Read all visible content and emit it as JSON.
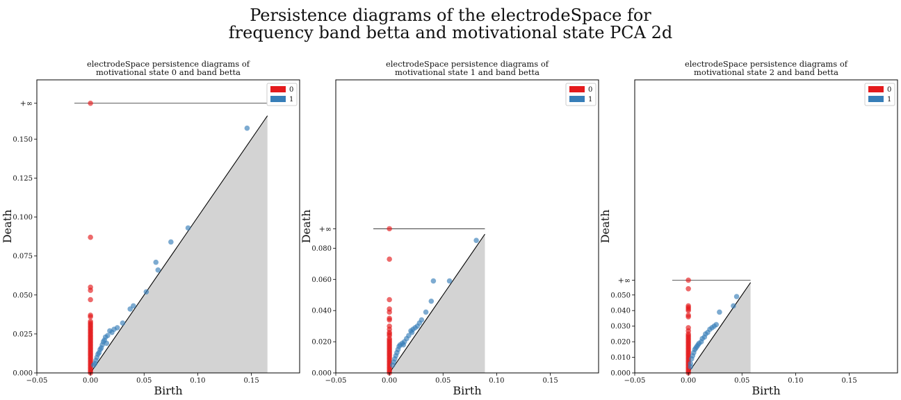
{
  "figure": {
    "title_line1": "Persistence diagrams of the electrodeSpace for",
    "title_line2": "frequency band betta and motivational state PCA 2d"
  },
  "colors": {
    "h0": "#e41a1c",
    "h1": "#377eb8",
    "diagonal_fill": "#d3d3d3"
  },
  "chart_data": [
    {
      "type": "scatter",
      "title_line1": "electrodeSpace persistence diagrams of",
      "title_line2": "motivational state 0 and band betta",
      "xlabel": "Birth",
      "ylabel": "Death",
      "xlim": [
        -0.05,
        0.195
      ],
      "ylim": [
        0,
        0.188
      ],
      "inf_value": 0.173,
      "diag_max": 0.165,
      "xticks": [
        "−0.05",
        "0.00",
        "0.05",
        "0.10",
        "0.15"
      ],
      "xtick_values": [
        -0.05,
        0,
        0.05,
        0.1,
        0.15
      ],
      "yticks": [
        "0.000",
        "0.025",
        "0.050",
        "0.075",
        "0.100",
        "0.125",
        "0.150"
      ],
      "ytick_values": [
        0,
        0.025,
        0.05,
        0.075,
        0.1,
        0.125,
        0.15
      ],
      "inf_label": "+∞",
      "legend": [
        "0",
        "1"
      ],
      "series": [
        {
          "name": "0",
          "points": [
            [
              0,
              0.173
            ],
            [
              0,
              0.087
            ],
            [
              0,
              0.055
            ],
            [
              0,
              0.053
            ],
            [
              0,
              0.047
            ],
            [
              0,
              0.037
            ],
            [
              0,
              0.036
            ],
            [
              0,
              0.033
            ],
            [
              0,
              0.032
            ],
            [
              0,
              0.031
            ],
            [
              0,
              0.03
            ],
            [
              0,
              0.029
            ],
            [
              0,
              0.028
            ],
            [
              0,
              0.027
            ],
            [
              0,
              0.026
            ],
            [
              0,
              0.025
            ],
            [
              0,
              0.024
            ],
            [
              0,
              0.023
            ],
            [
              0,
              0.022
            ],
            [
              0,
              0.021
            ],
            [
              0,
              0.02
            ],
            [
              0,
              0.019
            ],
            [
              0,
              0.018
            ],
            [
              0,
              0.017
            ],
            [
              0,
              0.016
            ],
            [
              0,
              0.015
            ],
            [
              0,
              0.014
            ],
            [
              0,
              0.013
            ],
            [
              0,
              0.012
            ],
            [
              0,
              0.011
            ],
            [
              0,
              0.01
            ],
            [
              0,
              0.009
            ],
            [
              0,
              0.008
            ],
            [
              0,
              0.007
            ],
            [
              0,
              0.006
            ],
            [
              0,
              0.005
            ],
            [
              0,
              0.004
            ],
            [
              0,
              0.003
            ],
            [
              0,
              0.002
            ],
            [
              0,
              0.001
            ],
            [
              0,
              0.0
            ]
          ]
        },
        {
          "name": "1",
          "points": [
            [
              0.146,
              0.157
            ],
            [
              0.091,
              0.093
            ],
            [
              0.075,
              0.084
            ],
            [
              0.061,
              0.071
            ],
            [
              0.063,
              0.066
            ],
            [
              0.052,
              0.052
            ],
            [
              0.04,
              0.043
            ],
            [
              0.037,
              0.041
            ],
            [
              0.03,
              0.032
            ],
            [
              0.025,
              0.029
            ],
            [
              0.022,
              0.028
            ],
            [
              0.018,
              0.027
            ],
            [
              0.02,
              0.026
            ],
            [
              0.016,
              0.024
            ],
            [
              0.014,
              0.023
            ],
            [
              0.013,
              0.021
            ],
            [
              0.012,
              0.02
            ],
            [
              0.015,
              0.019
            ],
            [
              0.011,
              0.018
            ],
            [
              0.01,
              0.016
            ],
            [
              0.009,
              0.015
            ],
            [
              0.008,
              0.013
            ],
            [
              0.007,
              0.012
            ],
            [
              0.006,
              0.01
            ],
            [
              0.005,
              0.008
            ],
            [
              0.004,
              0.006
            ],
            [
              0.003,
              0.005
            ]
          ]
        }
      ]
    },
    {
      "type": "scatter",
      "title_line1": "electrodeSpace persistence diagrams of",
      "title_line2": "motivational state 1 and band betta",
      "xlabel": "Birth",
      "ylabel": "Death",
      "xlim": [
        -0.05,
        0.195
      ],
      "ylim": [
        0,
        0.188
      ],
      "inf_value": 0.0925,
      "diag_max": 0.089,
      "xticks": [
        "−0.05",
        "0.00",
        "0.05",
        "0.10",
        "0.15"
      ],
      "xtick_values": [
        -0.05,
        0,
        0.05,
        0.1,
        0.15
      ],
      "yticks": [
        "0.000",
        "0.020",
        "0.040",
        "0.060",
        "0.080"
      ],
      "ytick_values": [
        0,
        0.02,
        0.04,
        0.06,
        0.08
      ],
      "inf_label": "+∞",
      "legend": [
        "0",
        "1"
      ],
      "series": [
        {
          "name": "0",
          "points": [
            [
              0,
              0.0925
            ],
            [
              0,
              0.073
            ],
            [
              0,
              0.047
            ],
            [
              0,
              0.041
            ],
            [
              0,
              0.039
            ],
            [
              0,
              0.035
            ],
            [
              0,
              0.034
            ],
            [
              0,
              0.03
            ],
            [
              0,
              0.028
            ],
            [
              0,
              0.026
            ],
            [
              0,
              0.025
            ],
            [
              0,
              0.024
            ],
            [
              0,
              0.022
            ],
            [
              0,
              0.021
            ],
            [
              0,
              0.02
            ],
            [
              0,
              0.019
            ],
            [
              0,
              0.018
            ],
            [
              0,
              0.017
            ],
            [
              0,
              0.016
            ],
            [
              0,
              0.015
            ],
            [
              0,
              0.014
            ],
            [
              0,
              0.013
            ],
            [
              0,
              0.012
            ],
            [
              0,
              0.011
            ],
            [
              0,
              0.01
            ],
            [
              0,
              0.009
            ],
            [
              0,
              0.008
            ],
            [
              0,
              0.007
            ],
            [
              0,
              0.006
            ],
            [
              0,
              0.005
            ],
            [
              0,
              0.004
            ],
            [
              0,
              0.003
            ],
            [
              0,
              0.002
            ],
            [
              0,
              0.001
            ],
            [
              0,
              0.0
            ]
          ]
        },
        {
          "name": "1",
          "points": [
            [
              0.081,
              0.085
            ],
            [
              0.056,
              0.059
            ],
            [
              0.041,
              0.059
            ],
            [
              0.039,
              0.046
            ],
            [
              0.034,
              0.039
            ],
            [
              0.03,
              0.034
            ],
            [
              0.028,
              0.032
            ],
            [
              0.026,
              0.03
            ],
            [
              0.024,
              0.029
            ],
            [
              0.022,
              0.028
            ],
            [
              0.02,
              0.027
            ],
            [
              0.021,
              0.026
            ],
            [
              0.018,
              0.024
            ],
            [
              0.016,
              0.022
            ],
            [
              0.014,
              0.02
            ],
            [
              0.012,
              0.019
            ],
            [
              0.013,
              0.018
            ],
            [
              0.01,
              0.018
            ],
            [
              0.009,
              0.017
            ],
            [
              0.008,
              0.015
            ],
            [
              0.007,
              0.013
            ],
            [
              0.006,
              0.011
            ],
            [
              0.005,
              0.009
            ],
            [
              0.004,
              0.007
            ],
            [
              0.003,
              0.005
            ]
          ]
        }
      ]
    },
    {
      "type": "scatter",
      "title_line1": "electrodeSpace persistence diagrams of",
      "title_line2": "motivational state 2 and band betta",
      "xlabel": "Birth",
      "ylabel": "Death",
      "xlim": [
        -0.05,
        0.195
      ],
      "ylim": [
        0,
        0.188
      ],
      "inf_value": 0.0595,
      "diag_max": 0.058,
      "xticks": [
        "−0.05",
        "0.00",
        "0.05",
        "0.10",
        "0.15"
      ],
      "xtick_values": [
        -0.05,
        0,
        0.05,
        0.1,
        0.15
      ],
      "yticks": [
        "0.000",
        "0.010",
        "0.020",
        "0.030",
        "0.040",
        "0.050"
      ],
      "ytick_values": [
        0,
        0.01,
        0.02,
        0.03,
        0.04,
        0.05
      ],
      "inf_label": "+∞",
      "legend": [
        "0",
        "1"
      ],
      "series": [
        {
          "name": "0",
          "points": [
            [
              0,
              0.0595
            ],
            [
              0,
              0.054
            ],
            [
              0,
              0.043
            ],
            [
              0,
              0.042
            ],
            [
              0,
              0.041
            ],
            [
              0,
              0.04
            ],
            [
              0,
              0.037
            ],
            [
              0,
              0.036
            ],
            [
              0,
              0.029
            ],
            [
              0,
              0.027
            ],
            [
              0,
              0.025
            ],
            [
              0,
              0.024
            ],
            [
              0,
              0.023
            ],
            [
              0,
              0.022
            ],
            [
              0,
              0.021
            ],
            [
              0,
              0.02
            ],
            [
              0,
              0.019
            ],
            [
              0,
              0.018
            ],
            [
              0,
              0.017
            ],
            [
              0,
              0.016
            ],
            [
              0,
              0.015
            ],
            [
              0,
              0.014
            ],
            [
              0,
              0.013
            ],
            [
              0,
              0.012
            ],
            [
              0,
              0.011
            ],
            [
              0,
              0.01
            ],
            [
              0,
              0.009
            ],
            [
              0,
              0.008
            ],
            [
              0,
              0.007
            ],
            [
              0,
              0.006
            ],
            [
              0,
              0.005
            ],
            [
              0,
              0.004
            ],
            [
              0,
              0.003
            ],
            [
              0,
              0.002
            ],
            [
              0,
              0.001
            ],
            [
              0,
              0.0
            ]
          ]
        },
        {
          "name": "1",
          "points": [
            [
              0.045,
              0.049
            ],
            [
              0.042,
              0.043
            ],
            [
              0.029,
              0.039
            ],
            [
              0.026,
              0.031
            ],
            [
              0.024,
              0.03
            ],
            [
              0.022,
              0.029
            ],
            [
              0.02,
              0.028
            ],
            [
              0.018,
              0.026
            ],
            [
              0.016,
              0.025
            ],
            [
              0.015,
              0.023
            ],
            [
              0.013,
              0.022
            ],
            [
              0.012,
              0.02
            ],
            [
              0.01,
              0.019
            ],
            [
              0.009,
              0.018
            ],
            [
              0.008,
              0.017
            ],
            [
              0.007,
              0.016
            ],
            [
              0.006,
              0.015
            ],
            [
              0.005,
              0.013
            ],
            [
              0.004,
              0.011
            ],
            [
              0.003,
              0.009
            ],
            [
              0.002,
              0.006
            ],
            [
              0.002,
              0.004
            ]
          ]
        }
      ]
    }
  ]
}
